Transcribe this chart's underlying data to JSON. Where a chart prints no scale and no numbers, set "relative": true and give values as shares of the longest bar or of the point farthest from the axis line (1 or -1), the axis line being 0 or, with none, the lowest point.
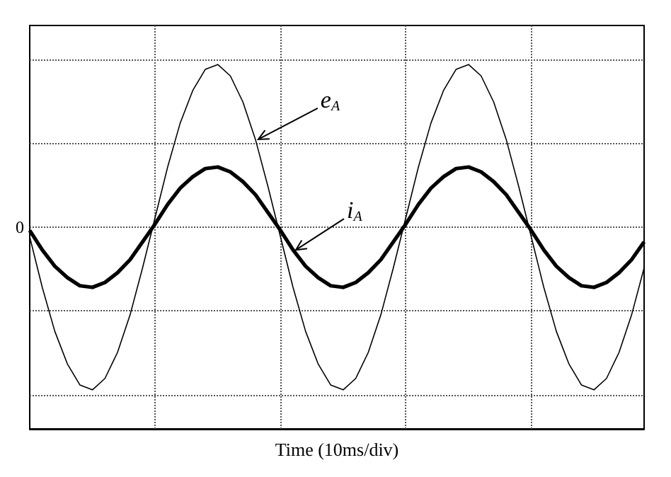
{
  "chart_data": {
    "type": "line",
    "xlabel": "Time (10ms/div)",
    "relative": true,
    "grid": true,
    "legend": false,
    "line_style": "solid",
    "annotations": [
      "0"
    ],
    "categories": [
      null,
      null,
      null,
      null,
      null,
      null,
      null,
      null,
      null,
      null,
      null,
      null,
      null,
      null,
      null,
      null,
      null,
      null,
      null,
      null,
      null,
      null,
      null,
      null,
      null,
      null,
      null,
      null,
      null,
      null,
      null,
      null,
      null,
      null,
      null,
      null,
      null,
      null,
      null,
      null,
      null,
      null,
      null,
      null,
      null,
      null,
      null,
      null,
      null,
      null
    ],
    "series": [
      {
        "name": "e$_{A}$",
        "color": "#000000",
        "values": [
          -0.06,
          -0.37,
          -0.64,
          -0.84,
          -0.97,
          -1,
          -0.93,
          -0.77,
          -0.54,
          -0.25,
          0.06,
          0.37,
          0.64,
          0.84,
          0.97,
          1,
          0.93,
          0.77,
          0.54,
          0.25,
          -0.06,
          -0.37,
          -0.64,
          -0.84,
          -0.97,
          -1,
          -0.93,
          -0.77,
          -0.54,
          -0.25,
          0.06,
          0.37,
          0.64,
          0.84,
          0.97,
          1,
          0.93,
          0.77,
          0.54,
          0.25,
          -0.06,
          -0.37,
          -0.64,
          -0.84,
          -0.97,
          -1,
          -0.93,
          -0.77,
          -0.54,
          -0.25
        ]
      },
      {
        "name": "i$_{A}$",
        "color": "#000000",
        "values": [
          -0.02,
          -0.14,
          -0.24,
          -0.31,
          -0.36,
          -0.37,
          -0.34,
          -0.28,
          -0.2,
          -0.09,
          0.02,
          0.14,
          0.24,
          0.31,
          0.36,
          0.37,
          0.34,
          0.28,
          0.2,
          0.09,
          -0.02,
          -0.14,
          -0.24,
          -0.31,
          -0.36,
          -0.37,
          -0.34,
          -0.28,
          -0.2,
          -0.09,
          0.02,
          0.14,
          0.24,
          0.31,
          0.36,
          0.37,
          0.34,
          0.28,
          0.2,
          0.09,
          -0.02,
          -0.14,
          -0.24,
          -0.31,
          -0.36,
          -0.37,
          -0.34,
          -0.28,
          -0.2,
          -0.09
        ]
      }
    ]
  }
}
